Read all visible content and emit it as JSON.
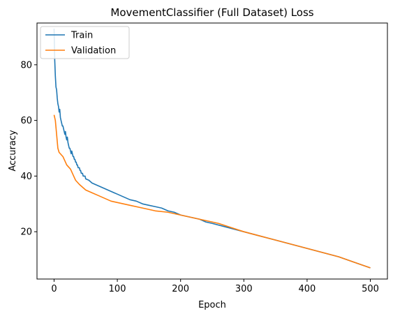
{
  "chart_data": {
    "type": "line",
    "title": "MovementClassifier (Full Dataset) Loss",
    "xlabel": "Epoch",
    "ylabel": "Accuracy",
    "xlim": [
      -27,
      527
    ],
    "ylim": [
      3,
      95
    ],
    "x_ticks": [
      0,
      100,
      200,
      300,
      400,
      500
    ],
    "y_ticks": [
      20,
      40,
      60,
      80
    ],
    "grid": false,
    "legend_position": "top-left",
    "series": [
      {
        "name": "Train",
        "color": "#1f77b4",
        "x": [
          0,
          1,
          2,
          3,
          4,
          5,
          6,
          7,
          8,
          9,
          10,
          11,
          12,
          13,
          14,
          15,
          16,
          17,
          18,
          19,
          20,
          21,
          22,
          23,
          24,
          25,
          26,
          27,
          28,
          29,
          30,
          31,
          32,
          33,
          34,
          35,
          36,
          37,
          38,
          39,
          40,
          41,
          42,
          43,
          44,
          45,
          46,
          47,
          48,
          49,
          50,
          55,
          60,
          65,
          70,
          75,
          80,
          85,
          90,
          95,
          100,
          110,
          120,
          130,
          140,
          150,
          160,
          170,
          180,
          190,
          200,
          210,
          220,
          230,
          240,
          250,
          275,
          300,
          325,
          350,
          375,
          400,
          425,
          450,
          475,
          500
        ],
        "y": [
          93,
          82,
          76,
          72,
          71,
          68,
          66,
          65,
          63,
          64,
          61,
          60,
          59,
          58,
          58,
          57,
          56,
          55,
          56,
          54,
          53,
          54,
          52,
          51,
          50,
          50,
          49,
          48,
          49,
          48,
          47,
          47,
          46,
          46,
          45,
          45,
          44,
          44,
          43,
          43,
          43,
          42,
          42,
          41,
          41,
          41,
          40,
          40,
          40,
          40,
          39,
          38.5,
          37.5,
          37,
          36.5,
          36,
          35.5,
          35,
          34.5,
          34,
          33.5,
          32.5,
          31.5,
          31,
          30,
          29.5,
          29,
          28.5,
          27.5,
          27,
          26,
          25.5,
          25,
          24.5,
          23.5,
          23,
          21.5,
          20,
          18.5,
          17,
          15.5,
          14,
          12.5,
          11,
          9,
          7
        ]
      },
      {
        "name": "Validation",
        "color": "#ff7f0e",
        "x": [
          0,
          2,
          4,
          6,
          8,
          10,
          12,
          14,
          16,
          18,
          20,
          22,
          24,
          26,
          28,
          30,
          32,
          34,
          36,
          38,
          40,
          45,
          50,
          55,
          60,
          70,
          80,
          90,
          100,
          120,
          140,
          160,
          180,
          200,
          220,
          240,
          260,
          280,
          300,
          325,
          350,
          375,
          400,
          425,
          450,
          475,
          500
        ],
        "y": [
          62,
          60,
          55,
          50,
          48.5,
          48,
          47.5,
          47,
          46,
          45,
          44,
          43.5,
          43,
          42.5,
          41.5,
          40.5,
          39.5,
          38.5,
          38,
          37.5,
          37,
          36,
          35,
          34.5,
          34,
          33,
          32,
          31,
          30.5,
          29.5,
          28.5,
          27.5,
          27,
          26,
          25,
          24,
          23,
          21.5,
          20,
          18.5,
          17,
          15.5,
          14,
          12.5,
          11,
          9,
          7
        ]
      }
    ]
  }
}
